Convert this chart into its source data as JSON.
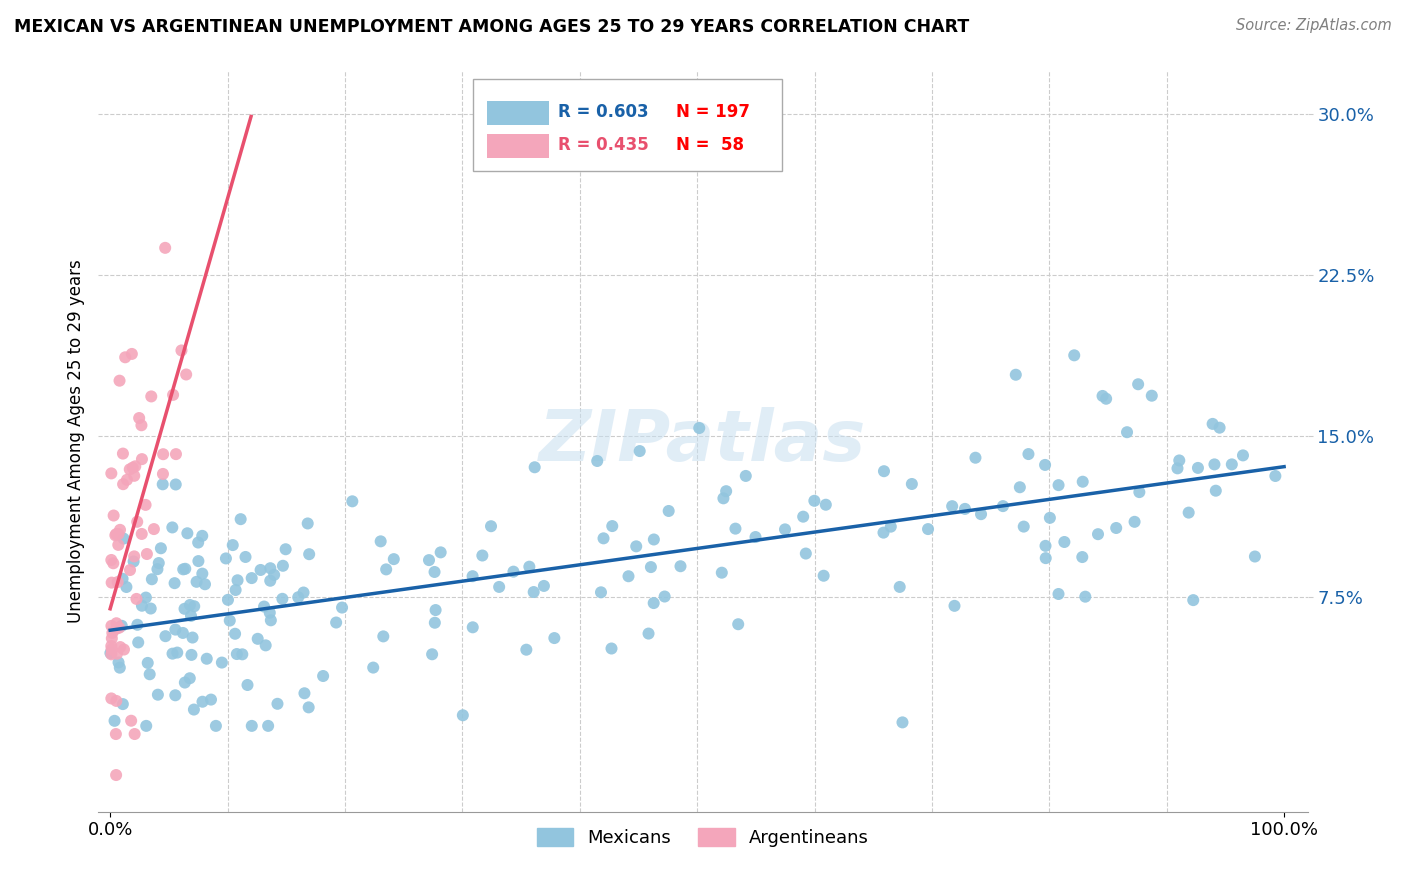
{
  "title": "MEXICAN VS ARGENTINEAN UNEMPLOYMENT AMONG AGES 25 TO 29 YEARS CORRELATION CHART",
  "source": "Source: ZipAtlas.com",
  "ylabel": "Unemployment Among Ages 25 to 29 years",
  "xlim": [
    -0.01,
    1.02
  ],
  "ylim": [
    -0.025,
    0.32
  ],
  "xtick_positions": [
    0.0,
    1.0
  ],
  "xticklabels": [
    "0.0%",
    "100.0%"
  ],
  "ytick_positions": [
    0.075,
    0.15,
    0.225,
    0.3
  ],
  "yticklabels": [
    "7.5%",
    "15.0%",
    "22.5%",
    "30.0%"
  ],
  "legend_r_mexican": "R = 0.603",
  "legend_n_mexican": "N = 197",
  "legend_r_argentinean": "R = 0.435",
  "legend_n_argentinean": "N =  58",
  "mexican_color": "#92c5de",
  "argentinean_color": "#f4a6bb",
  "mexican_line_color": "#1961a8",
  "argentinean_line_color": "#e8506e",
  "watermark_color": "#c8dff0",
  "background_color": "#ffffff",
  "grid_color": "#cccccc",
  "right_tick_color": "#1961a8"
}
